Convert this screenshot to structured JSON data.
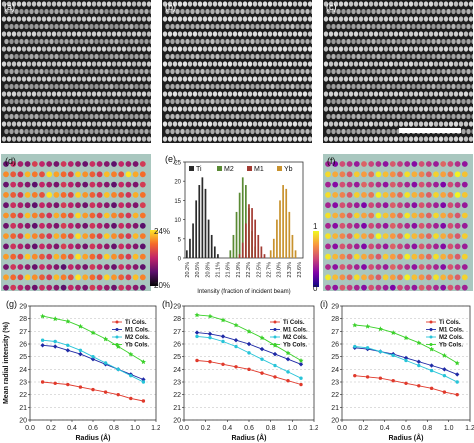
{
  "panels": {
    "a": "(a)",
    "b": "(b)",
    "c": "(c)",
    "d": "(d)",
    "e": "(e)",
    "f": "(f)",
    "g": "(g)",
    "h": "(h)",
    "i": "(i)"
  },
  "colorbar_d": {
    "max": "24%",
    "min": "20%"
  },
  "colorbar_f": {
    "max": "1",
    "min": "0"
  },
  "colors": {
    "Ti": "#e0392b",
    "M1": "#1f2aa6",
    "M2": "#27c4d8",
    "Yb": "#3bd12a",
    "hist_Ti": "#2b2b2b",
    "hist_M2": "#5a8a34",
    "hist_M1": "#a23b32",
    "hist_Yb": "#c8922e",
    "map_bg": "#a9c7bf"
  },
  "chart_data": [
    {
      "type": "bar",
      "panel": "e",
      "xlabel": "Intensity  (fraction of incident beam)",
      "ylim": [
        0,
        25
      ],
      "yticks": [
        "0",
        "5",
        "10",
        "15",
        "20",
        "25"
      ],
      "xticks": [
        "20.2%",
        "20.5%",
        "20.8%",
        "21.1%",
        "21.6%",
        "21.9%",
        "22.2%",
        "22.5%",
        "22.7%",
        "23.0%",
        "23.3%",
        "23.6%"
      ],
      "legend": [
        "Ti",
        "M2",
        "M1",
        "Yb"
      ],
      "series": [
        {
          "name": "Ti",
          "values": [
            [
              0,
              2
            ],
            [
              1,
              5
            ],
            [
              2,
              9
            ],
            [
              3,
              15
            ],
            [
              4,
              19
            ],
            [
              5,
              21
            ],
            [
              6,
              18
            ],
            [
              7,
              10
            ],
            [
              8,
              6
            ],
            [
              9,
              3
            ],
            [
              10,
              1
            ]
          ]
        },
        {
          "name": "M2",
          "values": [
            [
              14,
              2
            ],
            [
              15,
              6
            ],
            [
              16,
              12
            ],
            [
              17,
              17
            ],
            [
              18,
              21
            ],
            [
              19,
              19
            ],
            [
              20,
              13
            ],
            [
              21,
              7
            ],
            [
              22,
              3
            ]
          ]
        },
        {
          "name": "M1",
          "values": [
            [
              17,
              1
            ],
            [
              18,
              4
            ],
            [
              19,
              9
            ],
            [
              20,
              14
            ],
            [
              21,
              13
            ],
            [
              22,
              10
            ],
            [
              23,
              6
            ],
            [
              24,
              3
            ],
            [
              25,
              1
            ]
          ]
        },
        {
          "name": "Yb",
          "values": [
            [
              27,
              2
            ],
            [
              28,
              5
            ],
            [
              29,
              10
            ],
            [
              30,
              15
            ],
            [
              31,
              19
            ],
            [
              32,
              18
            ],
            [
              33,
              12
            ],
            [
              34,
              6
            ],
            [
              35,
              2
            ]
          ]
        }
      ]
    },
    {
      "type": "line",
      "panel": "g",
      "xlabel": "Radius (Å)",
      "ylabel": "Mean radial intensity (%)",
      "xlim": [
        0,
        1.2
      ],
      "ylim": [
        20,
        29
      ],
      "xticks": [
        "0.0",
        "0.2",
        "0.4",
        "0.6",
        "0.8",
        "1.0",
        "1.2"
      ],
      "yticks": [
        "20",
        "21",
        "22",
        "23",
        "24",
        "25",
        "26",
        "27",
        "28",
        "29"
      ],
      "legend": [
        "Ti Cols.",
        "M1 Cols.",
        "M2 Cols.",
        "Yb Cols."
      ],
      "x": [
        0.12,
        0.24,
        0.36,
        0.48,
        0.6,
        0.72,
        0.84,
        0.96,
        1.08
      ],
      "series": [
        {
          "name": "Ti Cols.",
          "values": [
            23.0,
            22.9,
            22.8,
            22.6,
            22.4,
            22.2,
            22.0,
            21.7,
            21.5
          ]
        },
        {
          "name": "M1 Cols.",
          "values": [
            25.9,
            25.8,
            25.5,
            25.2,
            24.8,
            24.4,
            24.0,
            23.6,
            23.2
          ]
        },
        {
          "name": "M2 Cols.",
          "values": [
            26.3,
            26.2,
            25.9,
            25.5,
            25.0,
            24.5,
            24.0,
            23.5,
            23.0
          ]
        },
        {
          "name": "Yb Cols.",
          "values": [
            28.2,
            28.0,
            27.8,
            27.4,
            26.9,
            26.4,
            25.8,
            25.2,
            24.6
          ]
        }
      ]
    },
    {
      "type": "line",
      "panel": "h",
      "xlabel": "Radius (Å)",
      "xlim": [
        0,
        1.2
      ],
      "ylim": [
        20,
        29
      ],
      "xticks": [
        "0.0",
        "0.2",
        "0.4",
        "0.6",
        "0.8",
        "1.0",
        "1.2"
      ],
      "yticks": [
        "20",
        "21",
        "22",
        "23",
        "24",
        "25",
        "26",
        "27",
        "28",
        "29"
      ],
      "legend": [
        "Ti Cols.",
        "M1 Cols.",
        "M2 Cols.",
        "Yb Cols."
      ],
      "x": [
        0.12,
        0.24,
        0.36,
        0.48,
        0.6,
        0.72,
        0.84,
        0.96,
        1.08
      ],
      "series": [
        {
          "name": "Ti Cols.",
          "values": [
            24.7,
            24.6,
            24.4,
            24.2,
            24.0,
            23.7,
            23.4,
            23.1,
            22.8
          ]
        },
        {
          "name": "M1 Cols.",
          "values": [
            26.9,
            26.8,
            26.6,
            26.3,
            26.0,
            25.6,
            25.2,
            24.8,
            24.4
          ]
        },
        {
          "name": "M2 Cols.",
          "values": [
            26.6,
            26.5,
            26.2,
            25.8,
            25.3,
            24.8,
            24.3,
            23.8,
            23.3
          ]
        },
        {
          "name": "Yb Cols.",
          "values": [
            28.3,
            28.2,
            27.9,
            27.5,
            27.0,
            26.5,
            25.9,
            25.3,
            24.7
          ]
        }
      ]
    },
    {
      "type": "line",
      "panel": "i",
      "xlabel": "Radius (Å)",
      "xlim": [
        0,
        1.2
      ],
      "ylim": [
        20,
        29
      ],
      "xticks": [
        "0.0",
        "0.2",
        "0.4",
        "0.6",
        "0.8",
        "1.0",
        "1.2"
      ],
      "yticks": [
        "20",
        "21",
        "22",
        "23",
        "24",
        "25",
        "26",
        "27",
        "28",
        "29"
      ],
      "legend": [
        "Ti Cols.",
        "M1 Cols.",
        "M2 Cols.",
        "Yb Cols."
      ],
      "x": [
        0.12,
        0.24,
        0.36,
        0.48,
        0.6,
        0.72,
        0.84,
        0.96,
        1.08
      ],
      "series": [
        {
          "name": "Ti Cols.",
          "values": [
            23.5,
            23.4,
            23.3,
            23.1,
            22.9,
            22.7,
            22.5,
            22.2,
            22.0
          ]
        },
        {
          "name": "M1 Cols.",
          "values": [
            25.7,
            25.6,
            25.4,
            25.2,
            24.9,
            24.6,
            24.3,
            24.0,
            23.6
          ]
        },
        {
          "name": "M2 Cols.",
          "values": [
            25.8,
            25.7,
            25.4,
            25.1,
            24.7,
            24.3,
            23.9,
            23.5,
            23.0
          ]
        },
        {
          "name": "Yb Cols.",
          "values": [
            27.5,
            27.4,
            27.2,
            26.9,
            26.5,
            26.1,
            25.6,
            25.1,
            24.5
          ]
        }
      ]
    }
  ]
}
